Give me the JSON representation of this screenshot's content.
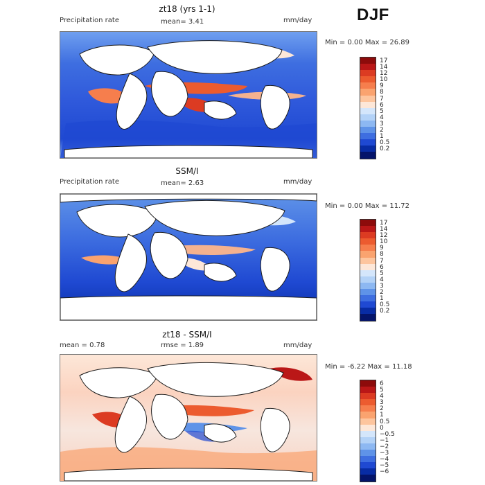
{
  "season": "DJF",
  "panels": [
    {
      "id": "model",
      "title": "zt18 (yrs 1-1)",
      "left_label": "Precipitation rate",
      "center_label": "mean=   3.41",
      "units": "mm/day",
      "minmax": "Min =    0.00 Max =   26.89"
    },
    {
      "id": "obs",
      "title": "SSM/I",
      "left_label": "Precipitation rate",
      "center_label": "mean=   2.63",
      "units": "mm/day",
      "minmax": "Min =    0.00 Max =   11.72"
    },
    {
      "id": "diff",
      "title": "zt18 - SSM/I",
      "left_label": "mean =    0.78",
      "center_label": "rmse =    1.89",
      "units": "mm/day",
      "minmax": "Min =  -6.22 Max =   11.18"
    }
  ],
  "legends": {
    "rate": {
      "labels": [
        "17",
        "14",
        "12",
        "10",
        "9",
        "8",
        "7",
        "6",
        "5",
        "4",
        "3",
        "2",
        "1",
        "0.5",
        "0.2"
      ],
      "colors": [
        "#8d0b0b",
        "#ba1717",
        "#dc3b22",
        "#ec5b2f",
        "#f67e4d",
        "#faa36f",
        "#fdc59e",
        "#fde7d8",
        "#d4e6fb",
        "#b3d2f7",
        "#8db8f2",
        "#5f93e8",
        "#3e6ee0",
        "#1f49d2",
        "#082ca4",
        "#04146a"
      ]
    },
    "diff": {
      "labels": [
        "6",
        "5",
        "4",
        "3",
        "2",
        "1",
        "0.5",
        "0",
        "−0.5",
        "−1",
        "−2",
        "−3",
        "−4",
        "−5",
        "−6"
      ],
      "colors": [
        "#8d0b0b",
        "#ba1717",
        "#dc3b22",
        "#ec5b2f",
        "#f67e4d",
        "#faa36f",
        "#fdc59e",
        "#fde7d8",
        "#d4e6fb",
        "#b3d2f7",
        "#8db8f2",
        "#5f93e8",
        "#3e6ee0",
        "#1f49d2",
        "#082ca4",
        "#04146a"
      ]
    }
  }
}
